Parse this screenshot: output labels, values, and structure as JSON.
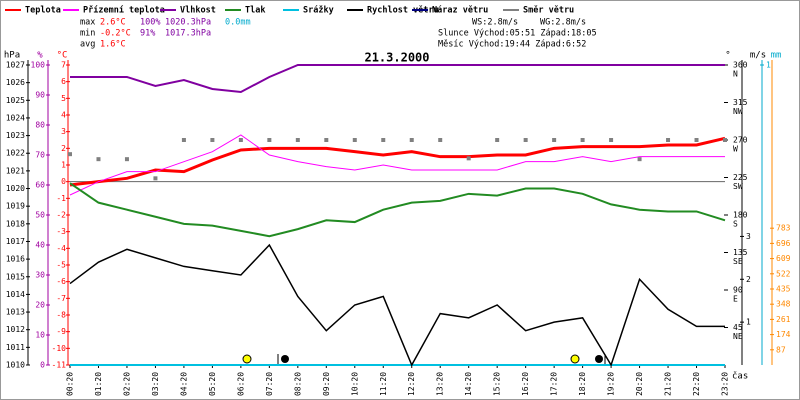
{
  "chart_data": {
    "type": "line",
    "title": "21.3.2000",
    "xlabel": "čas",
    "categories": [
      "00:20",
      "01:20",
      "02:20",
      "03:20",
      "04:20",
      "05:20",
      "06:20",
      "07:20",
      "08:20",
      "09:20",
      "10:20",
      "11:20",
      "12:20",
      "13:20",
      "14:20",
      "15:20",
      "16:20",
      "17:20",
      "18:20",
      "19:20",
      "20:20",
      "21:20",
      "22:20",
      "23:20"
    ],
    "axes": {
      "hpa": {
        "unit": "hPa",
        "color": "#000000",
        "lim": [
          1010,
          1027
        ],
        "ticks": [
          1010,
          1011,
          1012,
          1013,
          1014,
          1015,
          1016,
          1017,
          1018,
          1019,
          1020,
          1021,
          1022,
          1023,
          1024,
          1025,
          1026,
          1027
        ]
      },
      "pct": {
        "unit": "%",
        "color": "#a000a0",
        "lim": [
          0,
          100
        ],
        "ticks": [
          0,
          10,
          20,
          30,
          40,
          50,
          60,
          70,
          80,
          90,
          100
        ]
      },
      "temp": {
        "unit": "°C",
        "color": "#ff0000",
        "lim": [
          -11,
          7
        ],
        "ticks": [
          -11,
          -10,
          -9,
          -8,
          -7,
          -6,
          -5,
          -4,
          -3,
          -2,
          -1,
          0,
          1,
          2,
          3,
          4,
          5,
          6,
          7
        ]
      },
      "deg": {
        "unit": "°",
        "color": "#000000",
        "lim": [
          0,
          360
        ],
        "ticks": [
          45,
          90,
          135,
          180,
          225,
          270,
          315,
          360
        ],
        "directions": [
          "NE",
          "E",
          "SE",
          "S",
          "SW",
          "W",
          "NW",
          "N"
        ]
      },
      "ms": {
        "unit": "m/s",
        "color": "#000000",
        "lim": [
          0,
          7
        ],
        "ticks": [
          1,
          2,
          3
        ]
      },
      "mm": {
        "unit": "mm",
        "color": "#00aacc",
        "lim": [
          0,
          1
        ],
        "ticks": [
          1
        ]
      },
      "rad": {
        "color": "#ff8800",
        "lim": [
          0,
          1717
        ],
        "ticks": [
          87,
          174,
          261,
          348,
          435,
          522,
          609,
          696,
          783
        ]
      }
    },
    "series": [
      {
        "name": "Teplota",
        "color": "#ff0000",
        "axis": "temp",
        "style": "line",
        "width": 3,
        "values": [
          -0.2,
          0.0,
          0.2,
          0.7,
          0.6,
          1.3,
          1.9,
          2.0,
          2.0,
          2.0,
          1.8,
          1.6,
          1.8,
          1.5,
          1.5,
          1.6,
          1.6,
          2.0,
          2.1,
          2.1,
          2.1,
          2.2,
          2.2,
          2.6
        ]
      },
      {
        "name": "Přízemní teplota",
        "color": "#ff00ff",
        "axis": "temp",
        "style": "line",
        "width": 1,
        "values": [
          -0.8,
          0.0,
          0.6,
          0.6,
          1.2,
          1.8,
          2.8,
          1.6,
          1.2,
          0.9,
          0.7,
          1.0,
          0.7,
          0.7,
          0.7,
          0.7,
          1.2,
          1.2,
          1.5,
          1.2,
          1.5,
          1.5,
          1.5,
          1.5
        ]
      },
      {
        "name": "Vlhkost",
        "color": "#8000a0",
        "axis": "pct",
        "style": "line",
        "width": 2,
        "values": [
          96,
          96,
          96,
          93,
          95,
          92,
          91,
          96,
          100,
          100,
          100,
          100,
          100,
          100,
          100,
          100,
          100,
          100,
          100,
          100,
          100,
          100,
          100,
          100
        ]
      },
      {
        "name": "Tlak",
        "color": "#228b22",
        "axis": "hpa",
        "style": "line",
        "width": 2,
        "values": [
          1020.3,
          1019.2,
          1018.8,
          1018.4,
          1018.0,
          1017.9,
          1017.6,
          1017.3,
          1017.7,
          1018.2,
          1018.1,
          1018.8,
          1019.2,
          1019.3,
          1019.7,
          1019.6,
          1020.0,
          1020.0,
          1019.7,
          1019.1,
          1018.8,
          1018.7,
          1018.7,
          1018.2
        ]
      },
      {
        "name": "Srážky",
        "color": "#00c0e0",
        "axis": "mm",
        "style": "line",
        "width": 2,
        "values": [
          0,
          0,
          0,
          0,
          0,
          0,
          0,
          0,
          0,
          0,
          0,
          0,
          0,
          0,
          0,
          0,
          0,
          0,
          0,
          0,
          0,
          0,
          0,
          0
        ]
      },
      {
        "name": "Rychlost větru",
        "color": "#000000",
        "axis": "ms",
        "style": "line",
        "width": 1.5,
        "values": [
          1.9,
          2.4,
          2.7,
          2.5,
          2.3,
          2.2,
          2.1,
          2.8,
          1.6,
          0.8,
          1.4,
          1.6,
          0,
          1.2,
          1.1,
          1.4,
          0.8,
          1.0,
          1.1,
          0,
          2.0,
          1.3,
          0.9,
          0.9
        ]
      },
      {
        "name": "Náraz větru",
        "color": "#000080",
        "axis": "ms",
        "style": "line",
        "width": 1.5,
        "values": [
          null,
          null,
          null,
          null,
          null,
          null,
          null,
          null,
          null,
          null,
          null,
          null,
          null,
          null,
          null,
          null,
          null,
          null,
          null,
          null,
          null,
          null,
          null,
          null
        ]
      },
      {
        "name": "Směr větru",
        "color": "#808080",
        "axis": "deg",
        "style": "squares",
        "width": 1,
        "values": [
          253,
          247,
          247,
          224,
          270,
          270,
          270,
          270,
          270,
          270,
          270,
          270,
          270,
          270,
          248,
          270,
          270,
          270,
          270,
          270,
          247,
          270,
          270,
          270
        ]
      }
    ],
    "stats": [
      {
        "label": "max",
        "temp": "2.6°C",
        "hum": "100%",
        "press": "1020.3hPa",
        "rain": "0.0mm"
      },
      {
        "label": "min",
        "temp": "-0.2°C",
        "hum": "91%",
        "press": "1017.3hPa"
      },
      {
        "label": "avg",
        "temp": "1.6°C"
      }
    ],
    "info": {
      "ws": "WS:2.8m/s",
      "wg": "WG:2.8m/s",
      "sun": "Slunce Východ:05:51  Západ:18:05",
      "moon": "Měsíc  Východ:19:44  Západ:6:52"
    }
  }
}
